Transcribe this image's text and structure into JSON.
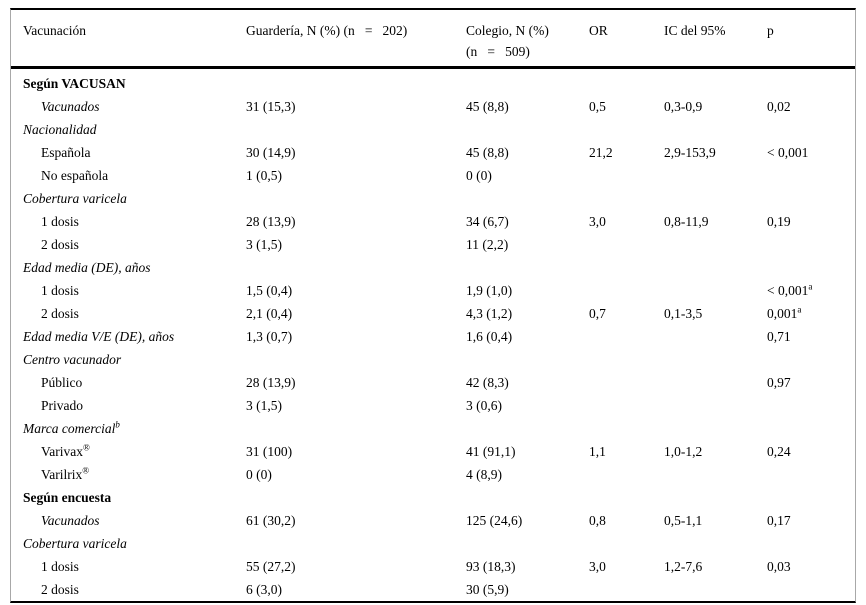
{
  "table": {
    "columns": [
      "Vacunación",
      "Guardería, N (%) (n   =   202)",
      "Colegio, N (%)\n(n   =   509)",
      "OR",
      "IC del 95%",
      "p"
    ],
    "rows": [
      {
        "label": "Según VACUSAN",
        "style": "section",
        "guarderia": "",
        "colegio": "",
        "or": "",
        "ic": "",
        "p": ""
      },
      {
        "label": "Vacunados",
        "style": "item-italic",
        "guarderia": "31 (15,3)",
        "colegio": "45 (8,8)",
        "or": "0,5",
        "ic": "0,3-0,9",
        "p": "0,02"
      },
      {
        "label": "Nacionalidad",
        "style": "group",
        "guarderia": "",
        "colegio": "",
        "or": "",
        "ic": "",
        "p": ""
      },
      {
        "label": "Española",
        "style": "item",
        "guarderia": "30 (14,9)",
        "colegio": "45 (8,8)",
        "or": "21,2",
        "ic": "2,9-153,9",
        "p": "< 0,001"
      },
      {
        "label": "No española",
        "style": "item",
        "guarderia": "1 (0,5)",
        "colegio": "0 (0)",
        "or": "",
        "ic": "",
        "p": ""
      },
      {
        "label": "Cobertura varicela",
        "style": "group",
        "guarderia": "",
        "colegio": "",
        "or": "",
        "ic": "",
        "p": ""
      },
      {
        "label": "1 dosis",
        "style": "item",
        "guarderia": "28 (13,9)",
        "colegio": "34 (6,7)",
        "or": "3,0",
        "ic": "0,8-11,9",
        "p": "0,19"
      },
      {
        "label": "2 dosis",
        "style": "item",
        "guarderia": "3 (1,5)",
        "colegio": "11 (2,2)",
        "or": "",
        "ic": "",
        "p": ""
      },
      {
        "label": "Edad media (DE), años",
        "style": "group",
        "guarderia": "",
        "colegio": "",
        "or": "",
        "ic": "",
        "p": ""
      },
      {
        "label": "1 dosis",
        "style": "item",
        "guarderia": "1,5 (0,4)",
        "colegio": "1,9 (1,0)",
        "or": "",
        "ic": "",
        "p": "< 0,001",
        "p_sup": "a"
      },
      {
        "label": "2 dosis",
        "style": "item",
        "guarderia": "2,1 (0,4)",
        "colegio": "4,3 (1,2)",
        "or": "0,7",
        "ic": "0,1-3,5",
        "p": "0,001",
        "p_sup": "a"
      },
      {
        "label": "Edad media V/E (DE), años",
        "style": "group",
        "guarderia": "1,3 (0,7)",
        "colegio": "1,6 (0,4)",
        "or": "",
        "ic": "",
        "p": "0,71"
      },
      {
        "label": "Centro vacunador",
        "style": "group",
        "guarderia": "",
        "colegio": "",
        "or": "",
        "ic": "",
        "p": ""
      },
      {
        "label": "Público",
        "style": "item",
        "guarderia": "28 (13,9)",
        "colegio": "42 (8,3)",
        "or": "",
        "ic": "",
        "p": "0,97"
      },
      {
        "label": "Privado",
        "style": "item",
        "guarderia": "3 (1,5)",
        "colegio": "3 (0,6)",
        "or": "",
        "ic": "",
        "p": ""
      },
      {
        "label": "Marca comercial",
        "label_sup": "b",
        "style": "group",
        "guarderia": "",
        "colegio": "",
        "or": "",
        "ic": "",
        "p": ""
      },
      {
        "label": "Varivax",
        "label_sup": "®",
        "style": "item",
        "guarderia": "31 (100)",
        "colegio": "41 (91,1)",
        "or": "1,1",
        "ic": "1,0-1,2",
        "p": "0,24"
      },
      {
        "label": "Varilrix",
        "label_sup": "®",
        "style": "item",
        "guarderia": "0 (0)",
        "colegio": "4 (8,9)",
        "or": "",
        "ic": "",
        "p": ""
      },
      {
        "label": "Según encuesta",
        "style": "section",
        "guarderia": "",
        "colegio": "",
        "or": "",
        "ic": "",
        "p": ""
      },
      {
        "label": "Vacunados",
        "style": "item-italic",
        "guarderia": "61 (30,2)",
        "colegio": "125 (24,6)",
        "or": "0,8",
        "ic": "0,5-1,1",
        "p": "0,17"
      },
      {
        "label": "Cobertura varicela",
        "style": "group",
        "guarderia": "",
        "colegio": "",
        "or": "",
        "ic": "",
        "p": ""
      },
      {
        "label": "1 dosis",
        "style": "item",
        "guarderia": "55 (27,2)",
        "colegio": "93 (18,3)",
        "or": "3,0",
        "ic": "1,2-7,6",
        "p": "0,03"
      },
      {
        "label": "2 dosis",
        "style": "item",
        "guarderia": "6 (3,0)",
        "colegio": "30 (5,9)",
        "or": "",
        "ic": "",
        "p": ""
      }
    ]
  }
}
